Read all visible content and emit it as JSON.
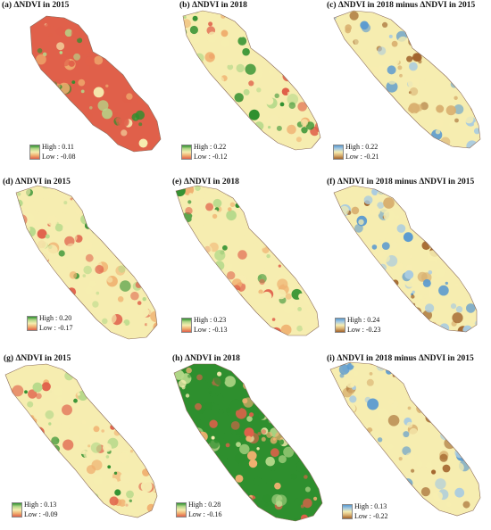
{
  "colors": {
    "green": "#2e8f2e",
    "light_green": "#b5d98a",
    "yellow": "#f6edb0",
    "orange": "#f0b070",
    "red": "#e0604a",
    "blue": "#5a9ad0",
    "brown": "#a0622a"
  },
  "panels": [
    {
      "title": "(a) ΔNDVI in 2015",
      "legend_high": "High : 0.11",
      "legend_low": "Low : -0.08",
      "scheme": "green-red",
      "dominant": "red"
    },
    {
      "title": "(b) ΔNDVI in 2018",
      "legend_high": "High : 0.22",
      "legend_low": "Low : -0.12",
      "scheme": "green-red",
      "dominant": "yellow"
    },
    {
      "title": "(c) ΔNDVI in 2018 minus ΔNDVI in 2015",
      "legend_high": "High : 0.22",
      "legend_low": "Low : -0.21",
      "scheme": "blue-brown",
      "dominant": "yellow"
    },
    {
      "title": "(d) ΔNDVI in 2015",
      "legend_high": "High : 0.20",
      "legend_low": "Low : -0.17",
      "scheme": "green-red",
      "dominant": "yellow"
    },
    {
      "title": "(e) ΔNDVI in 2018",
      "legend_high": "High : 0.23",
      "legend_low": "Low : -0.13",
      "scheme": "green-red",
      "dominant": "yellow"
    },
    {
      "title": "(f) ΔNDVI in 2018 minus ΔNDVI in 2015",
      "legend_high": "High : 0.24",
      "legend_low": "Low : -0.23",
      "scheme": "blue-brown",
      "dominant": "yellow"
    },
    {
      "title": "(g) ΔNDVI in 2015",
      "legend_high": "High : 0.13",
      "legend_low": "Low : -0.09",
      "scheme": "green-red",
      "dominant": "yellow"
    },
    {
      "title": "(h) ΔNDVI in 2018",
      "legend_high": "High : 0.28",
      "legend_low": "Low : -0.16",
      "scheme": "green-red",
      "dominant": "green"
    },
    {
      "title": "(i) ΔNDVI in 2018 minus ΔNDVI in 2015",
      "legend_high": "High : 0.13",
      "legend_low": "Low : -0.22",
      "scheme": "blue-brown",
      "dominant": "yellow"
    }
  ]
}
